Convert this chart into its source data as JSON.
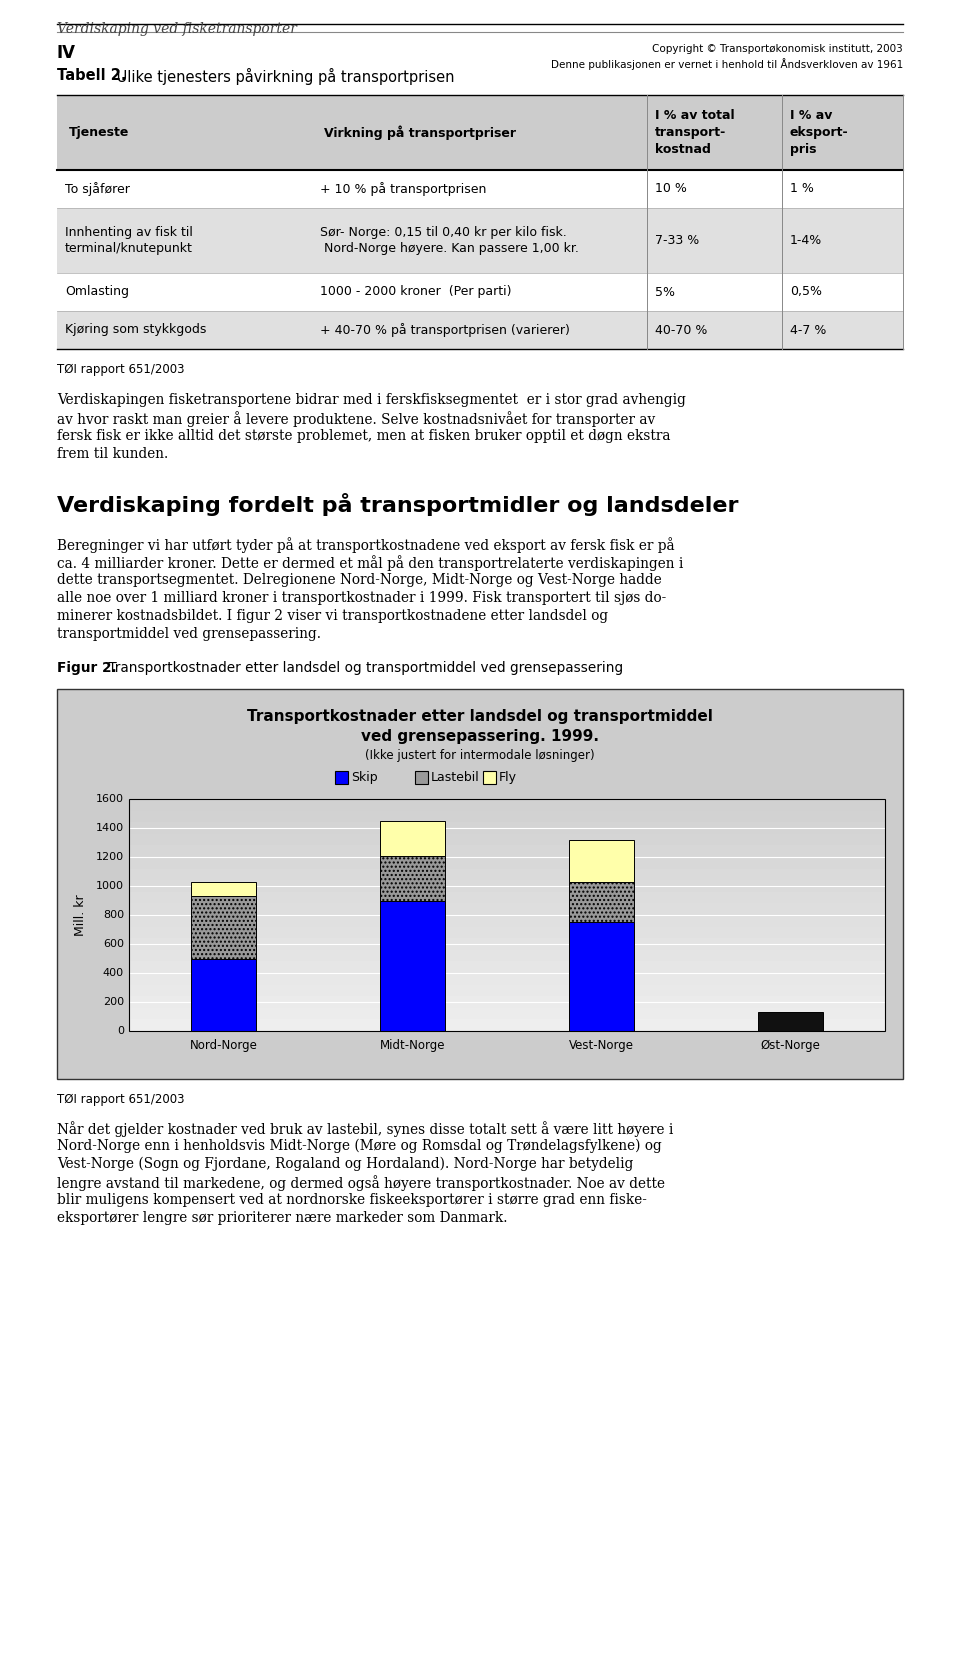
{
  "page_title": "Verdiskaping ved fisketransporter",
  "table_title_bold": "Tabell 2.",
  "table_title_rest": " Ulike tjenesters påvirkning på transportprisen",
  "table_headers": [
    "Tjeneste",
    "Virkning på transportpriser",
    "I % av total\ntransport-\nkostnad",
    "I % av\neksport-\npris"
  ],
  "table_rows": [
    [
      "To sjåfører",
      "+ 10 % på transportprisen",
      "10 %",
      "1 %"
    ],
    [
      "Innhenting av fisk til\nterminal/knutepunkt",
      "Sør- Norge: 0,15 til 0,40 kr per kilo fisk.\n Nord-Norge høyere. Kan passere 1,00 kr.",
      "7-33 %",
      "1-4%"
    ],
    [
      "Omlasting",
      "1000 - 2000 kroner  (Per parti)",
      "5%",
      "0,5%"
    ],
    [
      "Kjøring som stykkgods",
      "+ 40-70 % på transportprisen (varierer)",
      "40-70 %",
      "4-7 %"
    ]
  ],
  "toi_rapport": "TØI rapport 651/2003",
  "section_title": "Verdiskaping fordelt på transportmidler og landsdeler",
  "figur_label_bold": "Figur 2.",
  "figur_label_rest": " Transportkostnader etter landsdel og transportmiddel ved grensepassering",
  "chart_title_line1": "Transportkostnader etter landsdel og transportmiddel",
  "chart_title_line2": "ved grensepassering. 1999.",
  "chart_subtitle": "(Ikke justert for intermodale løsninger)",
  "chart_ylabel": "Mill. kr",
  "chart_yticks": [
    0,
    200,
    400,
    600,
    800,
    1000,
    1200,
    1400,
    1600
  ],
  "chart_categories": [
    "Nord-Norge",
    "Midt-Norge",
    "Vest-Norge",
    "Øst-Norge"
  ],
  "skip_values": [
    500,
    900,
    750,
    0
  ],
  "lastebil_values": [
    430,
    310,
    280,
    0
  ],
  "fly_values": [
    100,
    240,
    290,
    0
  ],
  "ostNorge_val": 130,
  "skip_color": "#0000FF",
  "lastebil_color": "#999999",
  "fly_color": "#FFFFAA",
  "ostNorge_color": "#111111",
  "bg_color": "#FFFFFF",
  "header_color": "#CCCCCC",
  "row_alt_color": "#E0E0E0",
  "chart_bg": "#CCCCCC",
  "plot_bg_top": "#DCDCDC",
  "plot_bg_bottom": "#F8F8F8",
  "body1_lines": [
    "Verdiskapingen fisketransportene bidrar med i ferskfisksegmentet  er i stor grad avhengig",
    "av hvor raskt man greier å levere produktene. Selve kostnadsnivået for transporter av",
    "fersk fisk er ikke alltid det største problemet, men at fisken bruker opptil et døgn ekstra",
    "frem til kunden."
  ],
  "body2_lines": [
    "Beregninger vi har utført tyder på at transportkostnadene ved eksport av fersk fisk er på",
    "ca. 4 milliarder kroner. Dette er dermed et mål på den transportrelaterte verdiskapingen i",
    "dette transportsegmentet. Delregionene Nord-Norge, Midt-Norge og Vest-Norge hadde",
    "alle noe over 1 milliard kroner i transportkostnader i 1999. Fisk transportert til sjøs do-",
    "minerer kostnadsbildet. I figur 2 viser vi transportkostnadene etter landsdel og",
    "transportmiddel ved grensepassering."
  ],
  "body3_lines": [
    "Når det gjelder kostnader ved bruk av lastebil, synes disse totalt sett å være litt høyere i",
    "Nord-Norge enn i henholdsvis Midt-Norge (Møre og Romsdal og Trøndelagsfylkene) og",
    "Vest-Norge (Sogn og Fjordane, Rogaland og Hordaland). Nord-Norge har betydelig",
    "lengre avstand til markedene, og dermed også høyere transportkostnader. Noe av dette",
    "blir muligens kompensert ved at nordnorske fiskeeksportører i større grad enn fiske-",
    "eksportører lengre sør prioriterer nære markeder som Danmark."
  ],
  "footer_iv": "IV",
  "footer_right1": "Copyright © Transportøkonomisk institutt, 2003",
  "footer_right2": "Denne publikasjonen er vernet i henhold til Åndsverkloven av 1961"
}
